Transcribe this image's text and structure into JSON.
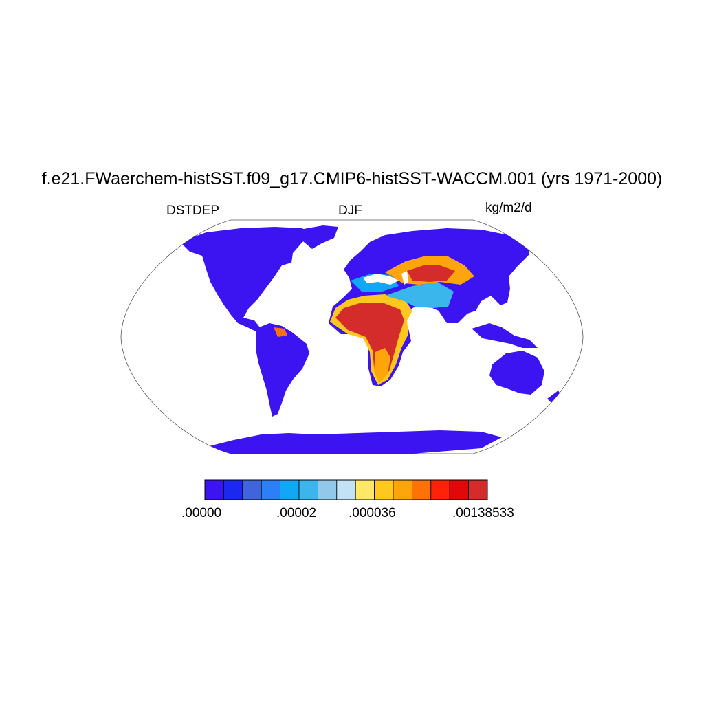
{
  "title": "f.e21.FWaerchem-histSST.f09_g17.CMIP6-histSST-WACCM.001 (yrs 1971-2000)",
  "left_label": "DSTDEP",
  "center_label": "DJF",
  "right_label": "kg/m2/d",
  "colorbar": {
    "colors": [
      "#3c14f2",
      "#1a28f0",
      "#3f64dc",
      "#2a80f4",
      "#12a6f6",
      "#3ab6ec",
      "#92c8ea",
      "#c2e2f6",
      "#ffe866",
      "#ffc81e",
      "#ffa50c",
      "#ff7208",
      "#ff2208",
      "#e00808",
      "#d42b2b"
    ],
    "tick_labels": [
      ".00000",
      ".00002",
      ".000036",
      ".00138533"
    ]
  },
  "map": {
    "projection": "Robinson",
    "ocean_color": "#ffffff",
    "land_base_color": "#3c14f2",
    "coastline_color": "#000000"
  }
}
